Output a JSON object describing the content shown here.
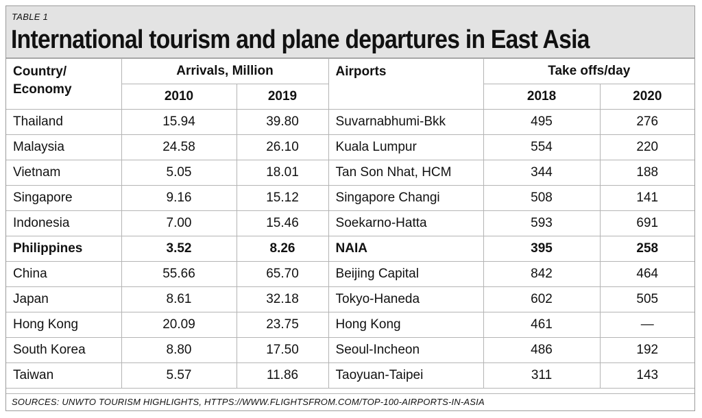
{
  "table_label": "TABLE 1",
  "title": "International tourism and plane departures in East Asia",
  "headers": {
    "country": "Country/ Economy",
    "arrivals": "Arrivals, Million",
    "airports": "Airports",
    "takeoffs": "Take offs/day",
    "arrivals_year_1": "2010",
    "arrivals_year_2": "2019",
    "takeoffs_year_1": "2018",
    "takeoffs_year_2": "2020"
  },
  "rows": [
    {
      "country": "Thailand",
      "arr_2010": "15.94",
      "arr_2019": "39.80",
      "airport": "Suvarnabhumi-Bkk",
      "to_2018": "495",
      "to_2020": "276"
    },
    {
      "country": "Malaysia",
      "arr_2010": "24.58",
      "arr_2019": "26.10",
      "airport": "Kuala Lumpur",
      "to_2018": "554",
      "to_2020": "220"
    },
    {
      "country": "Vietnam",
      "arr_2010": "5.05",
      "arr_2019": "18.01",
      "airport": "Tan Son Nhat, HCM",
      "to_2018": "344",
      "to_2020": "188"
    },
    {
      "country": "Singapore",
      "arr_2010": "9.16",
      "arr_2019": "15.12",
      "airport": "Singapore Changi",
      "to_2018": "508",
      "to_2020": "141"
    },
    {
      "country": "Indonesia",
      "arr_2010": "7.00",
      "arr_2019": "15.46",
      "airport": "Soekarno-Hatta",
      "to_2018": "593",
      "to_2020": "691"
    },
    {
      "country": "Philippines",
      "arr_2010": "3.52",
      "arr_2019": "8.26",
      "airport": "NAIA",
      "to_2018": "395",
      "to_2020": "258"
    },
    {
      "country": "China",
      "arr_2010": "55.66",
      "arr_2019": "65.70",
      "airport": "Beijing Capital",
      "to_2018": "842",
      "to_2020": "464"
    },
    {
      "country": "Japan",
      "arr_2010": "8.61",
      "arr_2019": "32.18",
      "airport": "Tokyo-Haneda",
      "to_2018": "602",
      "to_2020": "505"
    },
    {
      "country": "Hong Kong",
      "arr_2010": "20.09",
      "arr_2019": "23.75",
      "airport": "Hong Kong",
      "to_2018": "461",
      "to_2020": "—"
    },
    {
      "country": "South Korea",
      "arr_2010": "8.80",
      "arr_2019": "17.50",
      "airport": "Seoul-Incheon",
      "to_2018": "486",
      "to_2020": "192"
    },
    {
      "country": "Taiwan",
      "arr_2010": "5.57",
      "arr_2019": "11.86",
      "airport": "Taoyuan-Taipei",
      "to_2018": "311",
      "to_2020": "143"
    }
  ],
  "sources": "SOURCES: UNWTO TOURISM HIGHLIGHTS, HTTPS://WWW.FLIGHTSFROM.COM/TOP-100-AIRPORTS-IN-ASIA"
}
